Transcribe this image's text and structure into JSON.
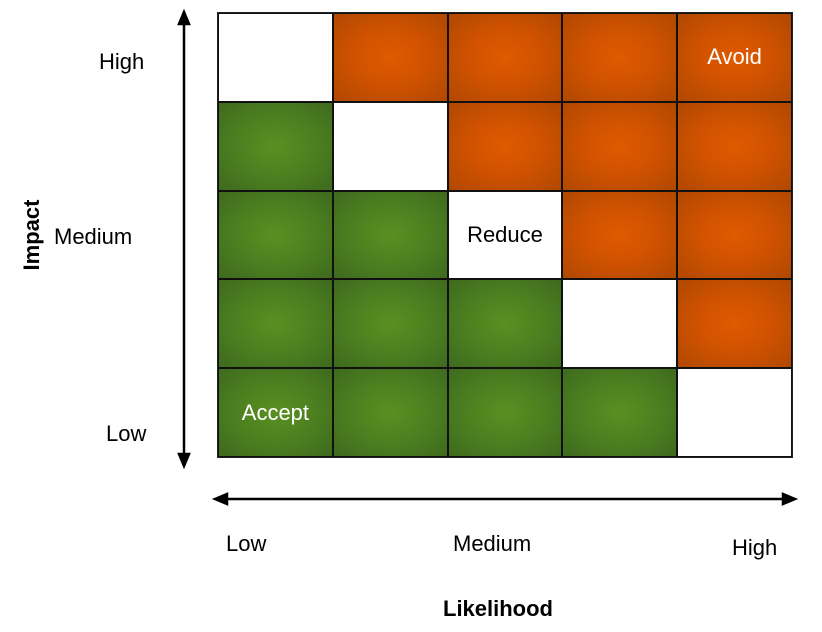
{
  "y_axis": {
    "title": "Impact",
    "ticks": [
      "High",
      "Medium",
      "Low"
    ]
  },
  "x_axis": {
    "title": "Likelihood",
    "ticks": [
      "Low",
      "Medium",
      "High"
    ]
  },
  "colors": {
    "orange": "#e05a00",
    "green": "#5a9021",
    "white": "#ffffff"
  },
  "matrix": [
    [
      {
        "c": "white",
        "t": ""
      },
      {
        "c": "orange",
        "t": ""
      },
      {
        "c": "orange",
        "t": ""
      },
      {
        "c": "orange",
        "t": ""
      },
      {
        "c": "orange",
        "t": "Avoid"
      }
    ],
    [
      {
        "c": "green",
        "t": ""
      },
      {
        "c": "white",
        "t": ""
      },
      {
        "c": "orange",
        "t": ""
      },
      {
        "c": "orange",
        "t": ""
      },
      {
        "c": "orange",
        "t": ""
      }
    ],
    [
      {
        "c": "green",
        "t": ""
      },
      {
        "c": "green",
        "t": ""
      },
      {
        "c": "white",
        "t": "Reduce"
      },
      {
        "c": "orange",
        "t": ""
      },
      {
        "c": "orange",
        "t": ""
      }
    ],
    [
      {
        "c": "green",
        "t": ""
      },
      {
        "c": "green",
        "t": ""
      },
      {
        "c": "green",
        "t": ""
      },
      {
        "c": "white",
        "t": ""
      },
      {
        "c": "orange",
        "t": ""
      }
    ],
    [
      {
        "c": "green",
        "t": "Accept"
      },
      {
        "c": "green",
        "t": ""
      },
      {
        "c": "green",
        "t": ""
      },
      {
        "c": "green",
        "t": ""
      },
      {
        "c": "white",
        "t": ""
      }
    ]
  ]
}
